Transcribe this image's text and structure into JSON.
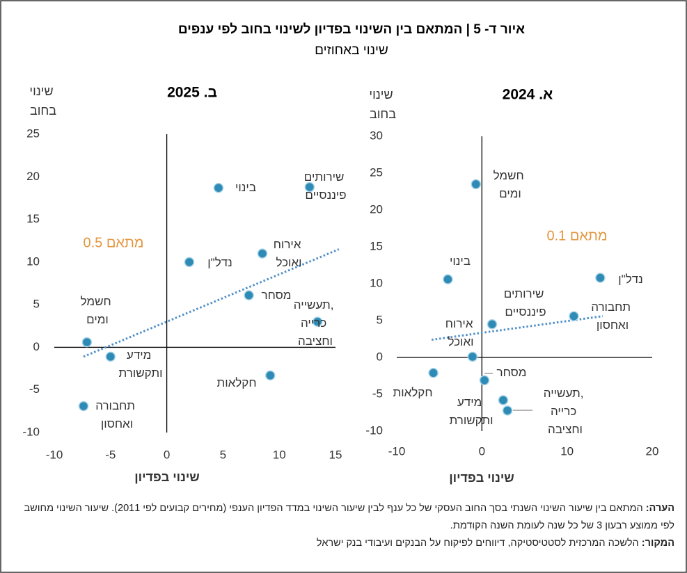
{
  "header": {
    "title": "איור ד- 5 | המתאם בין השינוי בפדיון לשינוי בחוב לפי ענפים",
    "subtitle": "שינוי באחוזים"
  },
  "chart_data": [
    {
      "type": "scatter",
      "title": "ב. 2025",
      "ylabel": "שינוי בחוב",
      "xlabel": "שינוי בפדיון",
      "categories": [
        "בינוי",
        "שירותים פיננסיים",
        "אירוח ואוכל",
        "נדל\"ן",
        "מסחר",
        "תעשייה, כרייה וחציבה",
        "חשמל ומים",
        "מידע ותקשורת",
        "חקלאות",
        "תחבורה ואחסון"
      ],
      "x": [
        4.6,
        12.7,
        8.5,
        2.0,
        7.3,
        13.4,
        -7.1,
        -5.0,
        9.2,
        -7.4
      ],
      "values": [
        18.7,
        18.8,
        11.0,
        10.0,
        6.1,
        3.0,
        0.6,
        -1.1,
        -3.3,
        -6.9
      ],
      "color": "#2e8bb5",
      "trendline": {
        "x": [
          -7.4,
          15.3
        ],
        "y": [
          -1.1,
          11.5
        ],
        "color": "#4f8fc8"
      },
      "annotation": "מתאם 0.5",
      "annotation_color": "#e3963e",
      "xlim": [
        -10,
        15
      ],
      "xticks": [
        -10,
        -5,
        0,
        5,
        10,
        15
      ],
      "ylim": [
        -10,
        25
      ],
      "yticks": [
        -10,
        -5,
        0,
        5,
        10,
        15,
        20,
        25
      ]
    },
    {
      "type": "scatter",
      "title": "א. 2024",
      "ylabel": "שינוי בחוב",
      "xlabel": "שינוי בפדיון",
      "categories": [
        "חשמל ומים",
        "בינוי",
        "נדל\"ן",
        "שירותים פיננסיים",
        "תחבורה ואחסון",
        "אירוח ואוכל",
        "חקלאות",
        "מסחר",
        "מידע ותקשורת",
        "תעשייה, כרייה וחציבה"
      ],
      "x": [
        -0.7,
        -4.0,
        13.9,
        1.2,
        10.8,
        -1.1,
        -5.7,
        0.3,
        2.5,
        3.0
      ],
      "values": [
        23.5,
        10.6,
        10.8,
        4.5,
        5.6,
        0.1,
        -2.1,
        -3.1,
        -5.8,
        -7.2
      ],
      "color": "#2e8bb5",
      "trendline": {
        "x": [
          -5.9,
          14.2
        ],
        "y": [
          2.4,
          5.6
        ],
        "color": "#4f8fc8"
      },
      "annotation": "מתאם 0.1",
      "annotation_color": "#e3963e",
      "xlim": [
        -10,
        20
      ],
      "xticks": [
        -10,
        0,
        10,
        20
      ],
      "ylim": [
        -10,
        30
      ],
      "yticks": [
        -10,
        -5,
        0,
        5,
        10,
        15,
        20,
        25,
        30
      ]
    }
  ],
  "footer": {
    "note_label": "הערה:",
    "note": "המתאם בין שיעור השינוי השנתי בסך החוב העסקי של כל ענף לבין שיעור השינוי במדד הפדיון הענפי (מחירים קבועים לפי 2011). שיעור השינוי מחושב לפי ממוצע רבעון 3 של כל שנה לעומת השנה הקודמת.",
    "source_label": "המקור:",
    "source": "הלשכה המרכזית לסטטיסטיקה, דיווחים לפיקוח על הבנקים ועיבודי בנק ישראל"
  }
}
